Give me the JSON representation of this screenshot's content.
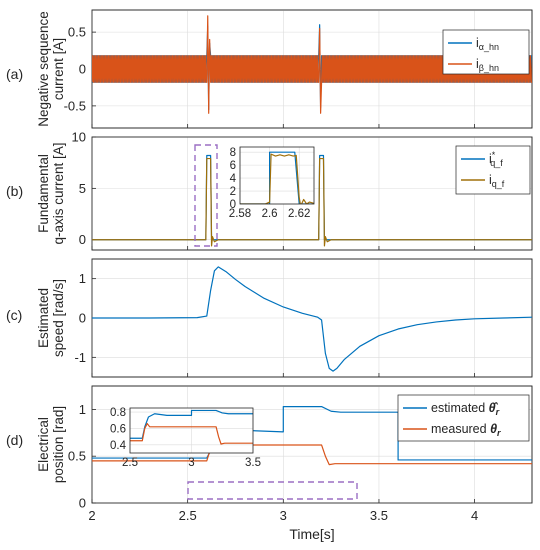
{
  "colors": {
    "blue": "#0072BD",
    "orange": "#D95319",
    "highlight": "#9B6FC4"
  },
  "shared_x": {
    "label": "Time[s]",
    "lim": [
      2,
      4.3
    ],
    "ticks": [
      "2",
      "2.5",
      "3",
      "3.5",
      "4"
    ]
  },
  "chart_data": [
    {
      "panel": "(a)",
      "type": "line",
      "ylabel": "Negative sequence current [A]",
      "xlim": [
        2,
        4.3
      ],
      "ylim": [
        -0.8,
        0.8
      ],
      "yticks": [
        "-0.5",
        "0",
        "0.5"
      ],
      "grid": true,
      "legend": "top-right",
      "description_of_signal": "balanced ripple of amplitude about 0.18 A with spikes near t = 2.61 s and t = 3.19 s",
      "series": [
        {
          "name": "i_{α_hn}",
          "display": {
            "main": "i",
            "sub": "α_hn"
          },
          "color": "#0072BD",
          "x": [
            2.0,
            2.6,
            2.605,
            2.61,
            2.615,
            2.62,
            3.185,
            3.19,
            3.195,
            3.2,
            4.3
          ],
          "y": [
            0.18,
            0.18,
            0.58,
            -0.55,
            0.35,
            0.18,
            0.18,
            0.6,
            -0.52,
            0.18,
            0.18
          ]
        },
        {
          "name": "i_{β_hn}",
          "display": {
            "main": "i",
            "sub": "β_hn"
          },
          "color": "#D95319",
          "x": [
            2.0,
            2.6,
            2.605,
            2.61,
            2.615,
            2.62,
            3.185,
            3.19,
            3.195,
            3.2,
            4.3
          ],
          "y": [
            -0.18,
            -0.18,
            0.72,
            -0.6,
            0.4,
            -0.18,
            -0.18,
            0.55,
            -0.6,
            -0.18,
            -0.18
          ]
        }
      ]
    },
    {
      "panel": "(b)",
      "type": "line",
      "ylabel": "Fundamental q-axis current [A]",
      "xlim": [
        2,
        4.3
      ],
      "ylim": [
        -1,
        10
      ],
      "yticks": [
        "0",
        "5",
        "10"
      ],
      "grid": true,
      "legend": "top-right",
      "series": [
        {
          "name": "i*_{q_f}",
          "display": {
            "main": "i",
            "sup": "*",
            "sub": "q_f"
          },
          "color": "#0072BD",
          "x": [
            2.0,
            2.595,
            2.6,
            2.62,
            2.625,
            3.185,
            3.19,
            3.21,
            3.215,
            4.3
          ],
          "y": [
            0,
            0,
            8.2,
            8.2,
            0,
            0,
            8.2,
            8.2,
            0,
            0
          ]
        },
        {
          "name": "i_{q_f}",
          "display": {
            "main": "i",
            "sub": "q_f"
          },
          "color": "#A0700A",
          "x": [
            2.0,
            2.595,
            2.6,
            2.62,
            2.625,
            2.63,
            2.64,
            2.66,
            3.185,
            3.19,
            3.21,
            3.215,
            3.22,
            3.23,
            3.25,
            4.3
          ],
          "y": [
            0,
            0,
            7.9,
            7.9,
            -0.6,
            0.3,
            -0.2,
            0,
            0,
            7.9,
            7.9,
            -0.6,
            0.3,
            -0.2,
            0,
            0
          ]
        }
      ],
      "inset": {
        "xlim": [
          2.58,
          2.63
        ],
        "ylim": [
          0,
          8.8
        ],
        "xticks": [
          "2.58",
          "2.6",
          "2.62"
        ],
        "yticks": [
          "0",
          "2",
          "4",
          "6",
          "8"
        ],
        "series": [
          {
            "name": "i*_{q_f}",
            "x": [
              2.58,
              2.597,
              2.6,
              2.6,
              2.617,
              2.62,
              2.63
            ],
            "y": [
              0,
              0,
              0,
              8,
              8,
              0,
              0
            ]
          },
          {
            "name": "i_{q_f}",
            "x": [
              2.58,
              2.597,
              2.6,
              2.601,
              2.604,
              2.607,
              2.61,
              2.613,
              2.616,
              2.618,
              2.62,
              2.621,
              2.623,
              2.625,
              2.627,
              2.63
            ],
            "y": [
              0,
              0,
              0.3,
              7.7,
              7.4,
              7.6,
              7.4,
              7.6,
              7.4,
              7.5,
              1.0,
              -0.3,
              0.7,
              0.0,
              0.3,
              0.1
            ]
          }
        ]
      }
    },
    {
      "panel": "(c)",
      "type": "line",
      "ylabel": "Estimated speed [rad/s]",
      "xlim": [
        2,
        4.3
      ],
      "ylim": [
        -1.5,
        1.5
      ],
      "yticks": [
        "-1",
        "0",
        "1"
      ],
      "grid": true,
      "series": [
        {
          "name": "",
          "color": "#0072BD",
          "x": [
            2.0,
            2.3,
            2.55,
            2.6,
            2.62,
            2.64,
            2.66,
            2.7,
            2.75,
            2.8,
            2.9,
            3.0,
            3.1,
            3.18,
            3.2,
            3.22,
            3.24,
            3.26,
            3.28,
            3.32,
            3.4,
            3.5,
            3.6,
            3.7,
            3.8,
            3.9,
            4.0,
            4.15,
            4.3
          ],
          "y": [
            0.0,
            0.0,
            0.01,
            0.05,
            0.7,
            1.2,
            1.3,
            1.18,
            0.98,
            0.8,
            0.5,
            0.28,
            0.12,
            0.02,
            -0.05,
            -0.9,
            -1.28,
            -1.35,
            -1.28,
            -1.05,
            -0.72,
            -0.45,
            -0.28,
            -0.17,
            -0.1,
            -0.05,
            -0.02,
            0.0,
            0.02
          ]
        }
      ]
    },
    {
      "panel": "(d)",
      "type": "line",
      "ylabel": "Electrical position [rad]",
      "xlim": [
        2,
        4.3
      ],
      "ylim": [
        0,
        1.25
      ],
      "yticks": [
        "0",
        "0.5",
        "1"
      ],
      "grid": true,
      "legend": "top-right",
      "series": [
        {
          "name": "estimated θ̂_r",
          "display": {
            "main": "estimated ",
            "sym": "θ̂",
            "sub": "r"
          },
          "color": "#0072BD",
          "x": [
            2.0,
            2.6,
            2.63,
            2.66,
            2.75,
            3.0,
            3.0,
            3.2,
            3.25,
            3.3,
            3.6,
            3.6,
            4.3
          ],
          "y": [
            0.48,
            0.48,
            0.6,
            0.72,
            0.78,
            0.76,
            1.03,
            1.03,
            0.98,
            0.97,
            0.97,
            0.46,
            0.46
          ]
        },
        {
          "name": "measured θ_r",
          "display": {
            "main": "measured ",
            "sym": "θ",
            "sub": "r"
          },
          "color": "#D95319",
          "x": [
            2.0,
            2.6,
            2.62,
            2.64,
            2.66,
            3.2,
            3.22,
            3.24,
            3.27,
            4.3
          ],
          "y": [
            0.45,
            0.45,
            0.58,
            0.66,
            0.62,
            0.62,
            0.5,
            0.41,
            0.42,
            0.42
          ]
        }
      ],
      "inset": {
        "xlim": [
          2.5,
          3.5
        ],
        "ylim": [
          0.3,
          0.85
        ],
        "xticks": [
          "2.5",
          "3",
          "3.5"
        ],
        "yticks": [
          "0.4",
          "0.6",
          "0.8"
        ],
        "series": [
          {
            "name": "estimated θ̂_r",
            "x": [
              2.5,
              2.6,
              2.62,
              2.65,
              2.7,
              2.8,
              3.0,
              3.0,
              3.2,
              3.25,
              3.3,
              3.5
            ],
            "y": [
              0.48,
              0.48,
              0.62,
              0.74,
              0.78,
              0.76,
              0.76,
              0.82,
              0.82,
              0.79,
              0.78,
              0.78
            ]
          },
          {
            "name": "measured θ_r",
            "x": [
              2.5,
              2.6,
              2.62,
              2.64,
              2.66,
              3.2,
              3.22,
              3.24,
              3.27,
              3.5
            ],
            "y": [
              0.45,
              0.45,
              0.6,
              0.66,
              0.62,
              0.62,
              0.5,
              0.41,
              0.42,
              0.42
            ]
          }
        ]
      }
    }
  ]
}
